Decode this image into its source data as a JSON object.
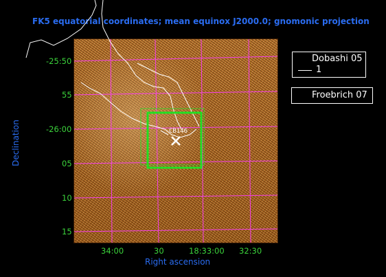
{
  "title": "FK5 equatorial coordinates; mean equinox J2000.0; gnomonic projection",
  "axes": {
    "x_label": "Right ascension",
    "y_label": "Declination",
    "x_ticks": [
      "34:00",
      "30",
      "18:33:00",
      "32:30"
    ],
    "y_ticks": [
      "-25:50",
      "55",
      "-26:00",
      "05",
      "10",
      "15"
    ]
  },
  "legend": {
    "dobashi": {
      "title": "Dobashi 05",
      "entry": "1"
    },
    "froebrich": {
      "title": "Froebrich 07"
    }
  },
  "marker": {
    "label": "CB146"
  },
  "colors": {
    "title_and_axis_labels": "#2a6cf0",
    "ticks": "#3bd33b",
    "grid": "#ff3cff",
    "green_box": "#22e022",
    "contours": "#ffffff",
    "background": "#000000"
  }
}
